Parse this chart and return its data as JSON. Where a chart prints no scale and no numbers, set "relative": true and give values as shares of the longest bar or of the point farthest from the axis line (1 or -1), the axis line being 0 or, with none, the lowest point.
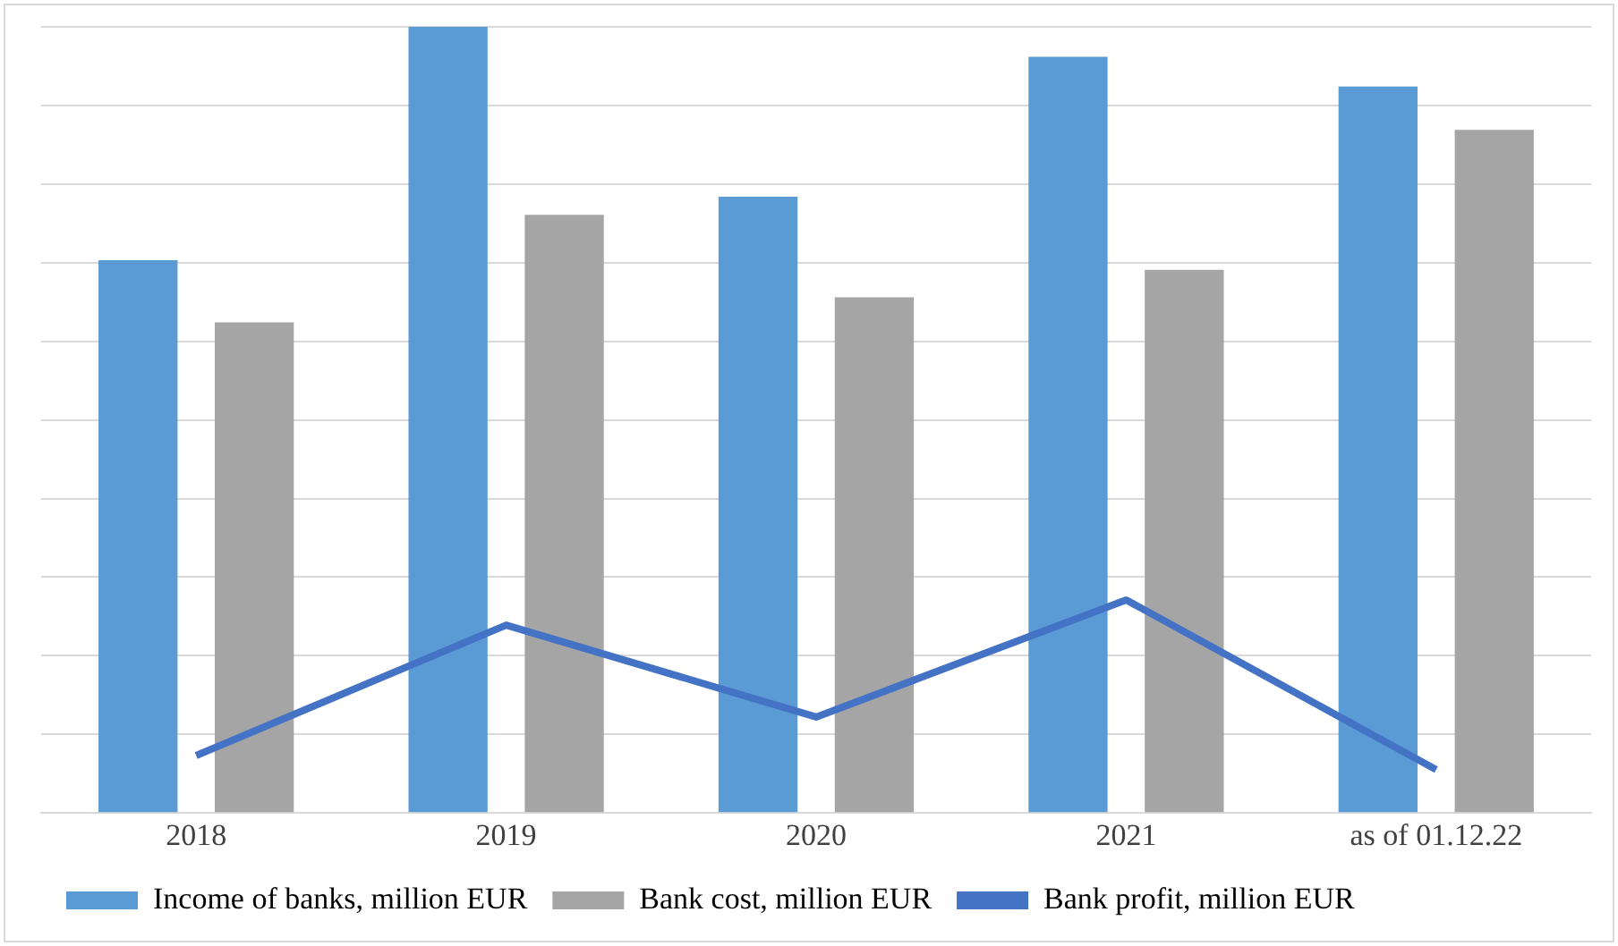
{
  "chart_data": {
    "type": "bar",
    "relative": true,
    "categories": [
      "2018",
      "2019",
      "2020",
      "2021",
      "as of 01.12.22"
    ],
    "series": [
      {
        "name": "Income of banks, million EUR",
        "color": "#5b9bd5",
        "values": [
          0.703,
          1,
          0.784,
          0.962,
          0.924
        ]
      },
      {
        "name": "Bank cost, million EUR",
        "color": "#a5a5a5",
        "values": [
          0.624,
          0.761,
          0.656,
          0.691,
          0.869
        ]
      },
      {
        "name": "Bank profit, million EUR",
        "type": "line",
        "color": "#4472c4",
        "values": [
          0.073,
          0.239,
          0.122,
          0.271,
          0.055
        ]
      }
    ],
    "grid": "y",
    "legend": "bottom",
    "marker": "none"
  }
}
